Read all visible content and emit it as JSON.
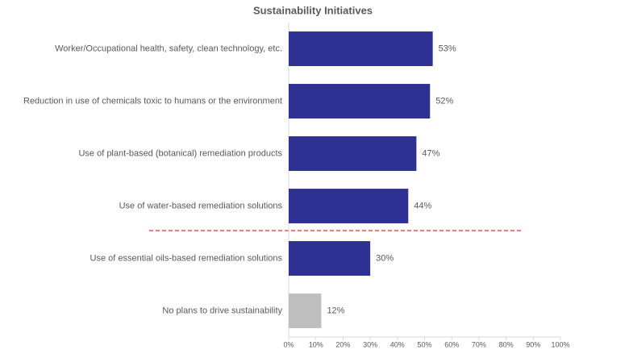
{
  "chart_data": {
    "type": "bar",
    "orientation": "horizontal",
    "title": "Sustainability Initiatives",
    "categories": [
      "Worker/Occupational health, safety, clean technology, etc.",
      "Reduction in use of chemicals toxic to humans or the environment",
      "Use of plant-based (botanical) remediation products",
      "Use of water-based remediation solutions",
      "Use of essential oils-based remediation solutions",
      "No plans to drive sustainability"
    ],
    "values": [
      53,
      52,
      47,
      44,
      30,
      12
    ],
    "value_labels": [
      "53%",
      "52%",
      "47%",
      "44%",
      "30%",
      "12%"
    ],
    "colors": [
      "#2e3192",
      "#2e3192",
      "#2e3192",
      "#2e3192",
      "#2e3192",
      "#bfbfbf"
    ],
    "xlim": [
      0,
      100
    ],
    "xticks": [
      {
        "value": 0,
        "label": "0%"
      },
      {
        "value": 10,
        "label": "10%"
      },
      {
        "value": 20,
        "label": "20%"
      },
      {
        "value": 30,
        "label": "30%"
      },
      {
        "value": 40,
        "label": "40%"
      },
      {
        "value": 50,
        "label": "50%"
      },
      {
        "value": 60,
        "label": "60%"
      },
      {
        "value": 70,
        "label": "70%"
      },
      {
        "value": 80,
        "label": "80%"
      },
      {
        "value": 90,
        "label": "90%"
      },
      {
        "value": 100,
        "label": "100%"
      }
    ],
    "grid": false
  }
}
